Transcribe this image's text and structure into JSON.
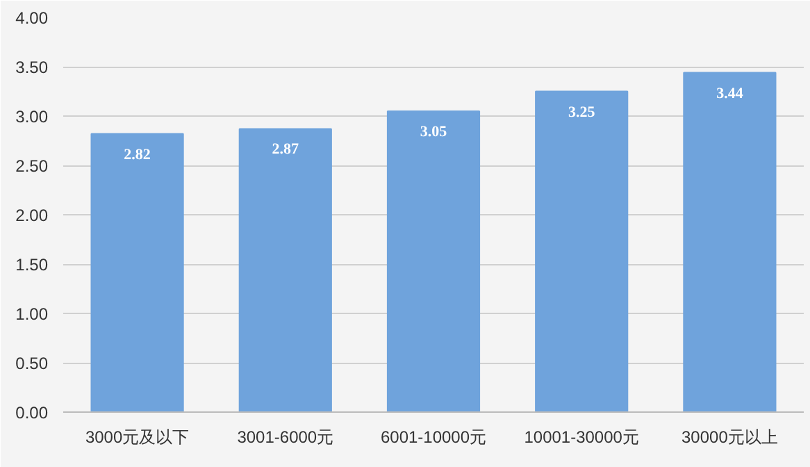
{
  "chart_data": {
    "type": "bar",
    "categories": [
      "3000元及以下",
      "3001-6000元",
      "6001-10000元",
      "10001-30000元",
      "30000元以上"
    ],
    "values": [
      2.82,
      2.87,
      3.05,
      3.25,
      3.44
    ],
    "color": "#6fa3dc",
    "ylim": [
      0,
      4
    ],
    "yticks": [
      {
        "value": 0,
        "label": "0.00"
      },
      {
        "value": 0.5,
        "label": "0.50"
      },
      {
        "value": 1,
        "label": "1.00"
      },
      {
        "value": 1.5,
        "label": "1.50"
      },
      {
        "value": 2,
        "label": "2.00"
      },
      {
        "value": 2.5,
        "label": "2.50"
      },
      {
        "value": 3,
        "label": "3.00"
      },
      {
        "value": 3.5,
        "label": "3.50"
      },
      {
        "value": 4,
        "label": "4.00"
      }
    ],
    "grid": "y",
    "data_labels": true
  }
}
